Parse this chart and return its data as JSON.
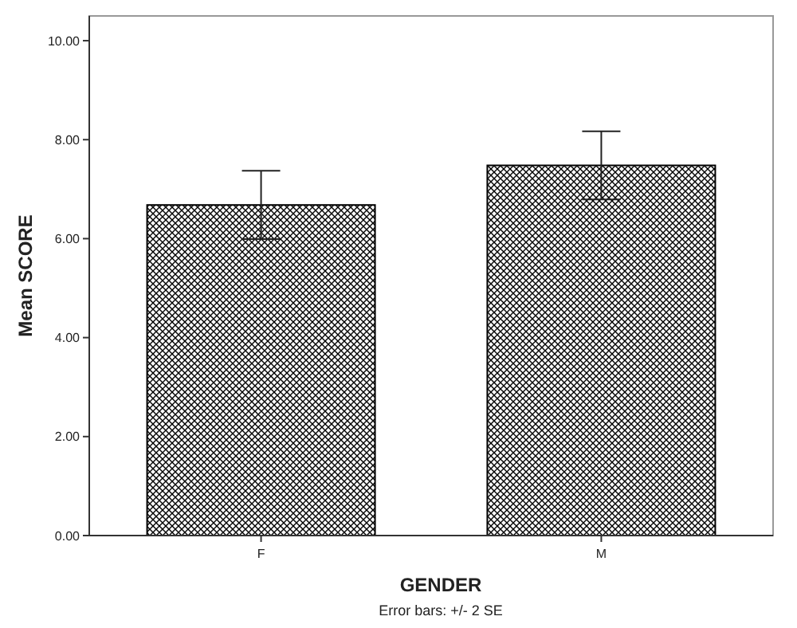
{
  "chart_data": {
    "type": "bar",
    "xlabel": "GENDER",
    "ylabel": "Mean SCORE",
    "categories": [
      "F",
      "M"
    ],
    "values": [
      6.68,
      7.48
    ],
    "errors": [
      0.69,
      0.69
    ],
    "color": "#000000",
    "ylim": [
      0,
      10.5
    ],
    "yticks": [
      {
        "value": 0,
        "label": "0.00"
      },
      {
        "value": 2,
        "label": "2.00"
      },
      {
        "value": 4,
        "label": "4.00"
      },
      {
        "value": 6,
        "label": "6.00"
      },
      {
        "value": 8,
        "label": "8.00"
      },
      {
        "value": 10,
        "label": "10.00"
      }
    ],
    "annotations": [
      "Error bars: +/- 2 SE"
    ]
  }
}
